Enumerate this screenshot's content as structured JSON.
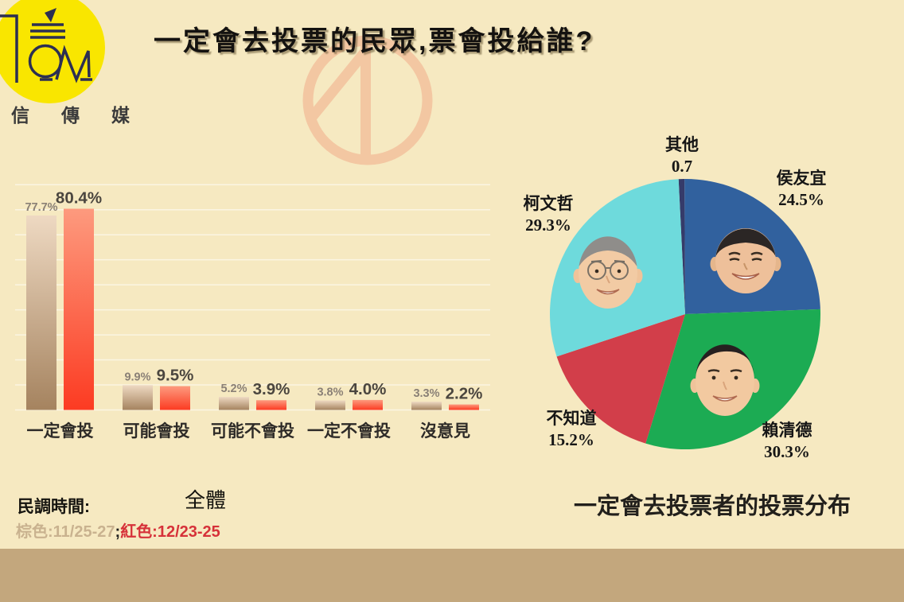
{
  "header": {
    "title": "一定會去投票的民眾,票會投給誰?",
    "brand_name": "信傳媒"
  },
  "notes": {
    "poll_time_label": "民調時間:",
    "brown_note": "棕色:11/25-27",
    "separator": ";",
    "red_note": "紅色:12/23-25"
  },
  "colors": {
    "background": "#f6e9c1",
    "footer_bar": "#c3a77d",
    "logo_circle": "#f9e600",
    "logo_ink": "#2c2f52",
    "watermark": "#f3c7a2",
    "gridline": "rgba(255,255,255,0.55)"
  },
  "chart_data": [
    {
      "type": "bar",
      "title": "全體",
      "categories": [
        "一定會投",
        "可能會投",
        "可能不會投",
        "一定不會投",
        "沒意見"
      ],
      "series": [
        {
          "name": "棕色:11/25-27",
          "color_top": "#eed9c2",
          "color_bottom": "#a5835f",
          "values": [
            77.7,
            9.9,
            5.2,
            3.8,
            3.3
          ],
          "value_labels": [
            "77.7%",
            "9.9%",
            "5.2%",
            "3.8%",
            "3.3%"
          ]
        },
        {
          "name": "紅色:12/23-25",
          "color_top": "#fd9a7e",
          "color_bottom": "#fc3b22",
          "values": [
            80.4,
            9.5,
            3.9,
            4.0,
            2.2
          ],
          "value_labels": [
            "80.4%",
            "9.5%",
            "3.9%",
            "4.0%",
            "2.2%"
          ]
        }
      ],
      "ylim": [
        0,
        90
      ],
      "grid": true,
      "grid_step_pct": 10,
      "legend_position": "below-left-note"
    },
    {
      "type": "pie",
      "title": "一定會去投票者的投票分布",
      "start_angle_deg": -2.8,
      "slices": [
        {
          "label": "其他",
          "value": 0.7,
          "value_label": "0.7",
          "color": "#353b6a"
        },
        {
          "label": "侯友宜",
          "value": 24.5,
          "value_label": "24.5%",
          "color": "#31619e"
        },
        {
          "label": "賴清德",
          "value": 30.3,
          "value_label": "30.3%",
          "color": "#1cab53"
        },
        {
          "label": "不知道",
          "value": 15.2,
          "value_label": "15.2%",
          "color": "#d23e4a"
        },
        {
          "label": "柯文哲",
          "value": 29.3,
          "value_label": "29.3%",
          "color": "#6edadc"
        }
      ]
    }
  ]
}
